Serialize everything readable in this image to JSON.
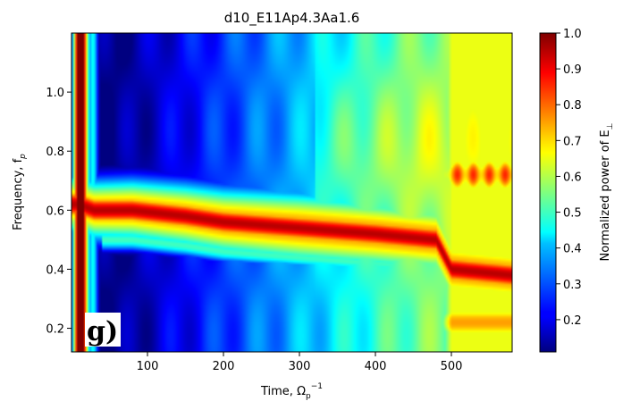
{
  "chart_data": {
    "type": "heatmap",
    "title": "d10_E11Ap4.3Aa1.6",
    "xlabel": "Time, Ω",
    "xlabel_sup": "−1",
    "xlabel_sub": "p",
    "ylabel": "Frequency, f",
    "ylabel_sub": "p",
    "xlim": [
      0,
      580
    ],
    "ylim": [
      0.12,
      1.2
    ],
    "xticks": [
      100,
      200,
      300,
      400,
      500
    ],
    "xtick_labels": [
      "100",
      "200",
      "300",
      "400",
      "500"
    ],
    "yticks": [
      0.2,
      0.4,
      0.6,
      0.8,
      1.0
    ],
    "ytick_labels": [
      "0.2",
      "0.4",
      "0.6",
      "0.8",
      "1.0"
    ],
    "colormap": "jet",
    "colorbar": {
      "label": "Normalized power of E",
      "label_sub": "⊥",
      "range": [
        0.11,
        1.0
      ],
      "ticks": [
        0.2,
        0.3,
        0.4,
        0.5,
        0.6,
        0.7,
        0.8,
        0.9,
        1.0
      ],
      "tick_labels": [
        "0.2",
        "0.3",
        "0.4",
        "0.5",
        "0.6",
        "0.7",
        "0.8",
        "0.9",
        "1.0"
      ]
    },
    "panel_label": "g)",
    "features": {
      "main_band_frequency_vs_time": [
        [
          10,
          0.62
        ],
        [
          30,
          0.6
        ],
        [
          80,
          0.6
        ],
        [
          150,
          0.58
        ],
        [
          200,
          0.56
        ],
        [
          300,
          0.54
        ],
        [
          400,
          0.52
        ],
        [
          480,
          0.5
        ],
        [
          500,
          0.4
        ],
        [
          580,
          0.38
        ]
      ],
      "early_broadband_time_end": 25,
      "background_low_start": 0.12,
      "background_late": 0.55,
      "late_high_band_frequency": 0.72
    }
  }
}
